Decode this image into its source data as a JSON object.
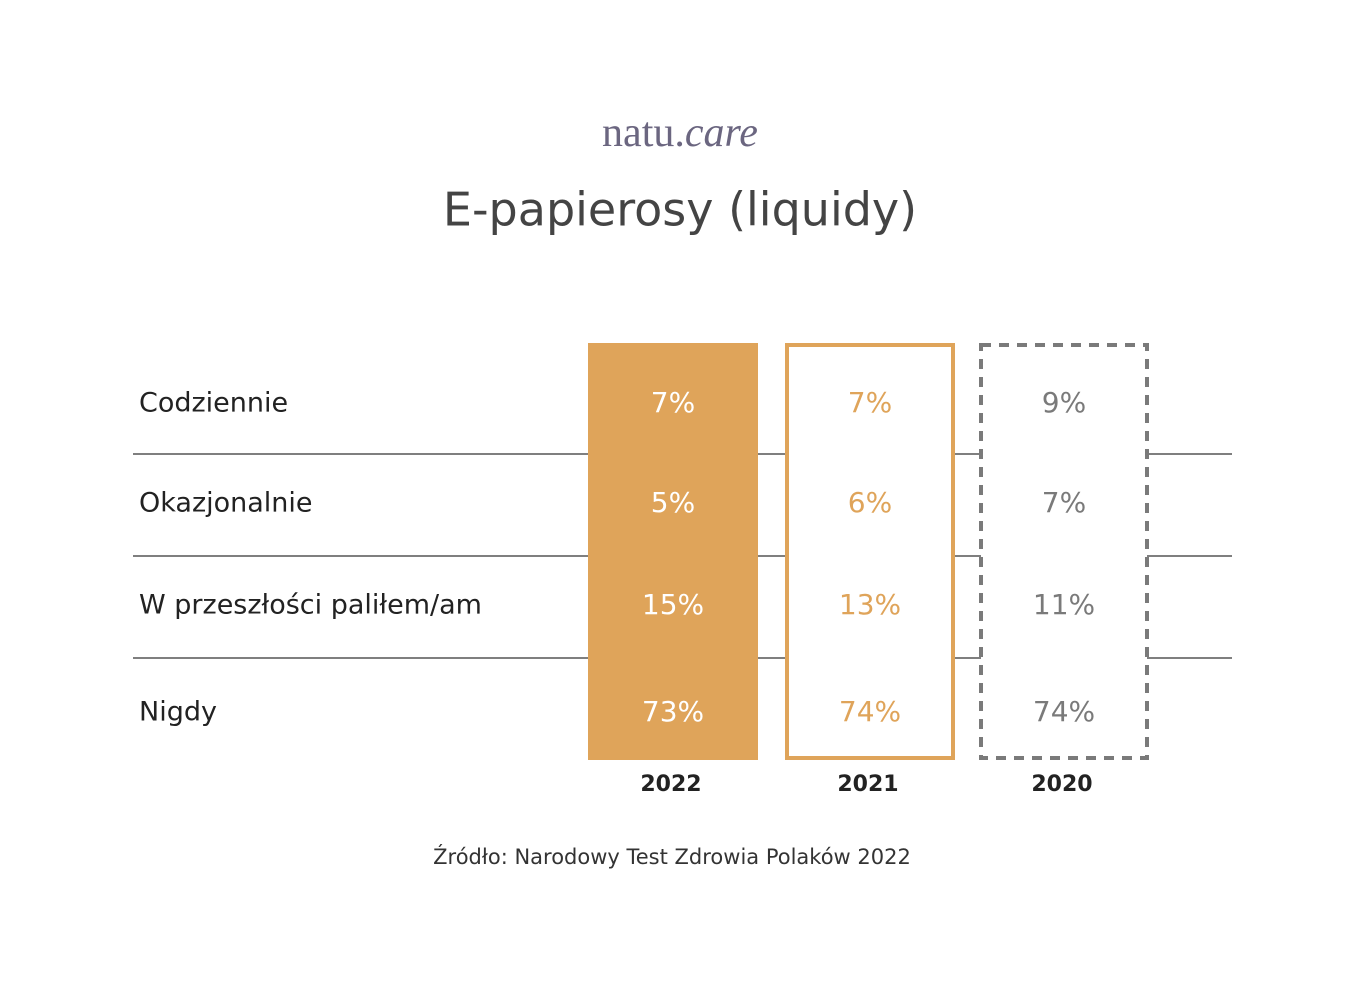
{
  "logo": {
    "main": "natu.",
    "accent": "care"
  },
  "title": "E-papierosy (liquidy)",
  "table": {
    "columns": [
      "2022",
      "2021",
      "2020"
    ],
    "rows": [
      {
        "label": "Codziennie",
        "cells": [
          "7%",
          "7%",
          "9%"
        ]
      },
      {
        "label": "Okazjonalnie",
        "cells": [
          "5%",
          "6%",
          "7%"
        ]
      },
      {
        "label": "W przeszłości paliłem/am",
        "cells": [
          "15%",
          "13%",
          "11%"
        ]
      },
      {
        "label": "Nigdy",
        "cells": [
          "73%",
          "74%",
          "74%"
        ]
      }
    ]
  },
  "source": "Źródło: Narodowy Test Zdrowia Polaków 2022"
}
